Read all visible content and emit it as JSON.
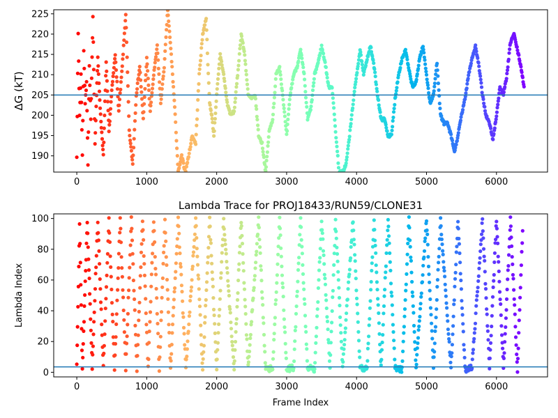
{
  "chart_data": [
    {
      "type": "scatter",
      "title": "",
      "ylabel": "ΔG (kT)",
      "xlabel": "",
      "xlim": [
        -330,
        6730
      ],
      "ylim": [
        186,
        226
      ],
      "xticks": [
        "0",
        "1000",
        "2000",
        "3000",
        "4000",
        "5000",
        "6000"
      ],
      "yticks": [
        "190",
        "195",
        "200",
        "205",
        "210",
        "215",
        "220",
        "225"
      ],
      "hline": 205,
      "grid": false,
      "colormap": "rainbow (red at frame 0 → violet at frame ~6400)",
      "series": [
        {
          "anchors": [
            [
              0,
              190
            ],
            [
              20,
              220
            ],
            [
              40,
              200
            ],
            [
              60,
              210
            ],
            [
              80,
              190
            ],
            [
              100,
              216
            ],
            [
              120,
              203
            ],
            [
              140,
              208
            ],
            [
              160,
              188
            ],
            [
              180,
              212
            ],
            [
              200,
              199
            ],
            [
              230,
              224
            ],
            [
              260,
              193
            ],
            [
              300,
              214
            ],
            [
              340,
              200
            ],
            [
              380,
              190
            ],
            [
              420,
              213
            ],
            [
              460,
              196
            ],
            [
              500,
              206
            ],
            [
              550,
              215
            ],
            [
              600,
              201
            ],
            [
              650,
              212
            ],
            [
              700,
              225
            ],
            [
              750,
              196
            ],
            [
              800,
              188
            ],
            [
              850,
              205
            ],
            [
              900,
              212
            ],
            [
              950,
              199
            ],
            [
              1000,
              214
            ],
            [
              1050,
              201
            ],
            [
              1100,
              210
            ],
            [
              1150,
              217
            ],
            [
              1200,
              203
            ],
            [
              1250,
              212
            ],
            [
              1300,
              226
            ],
            [
              1350,
              215
            ],
            [
              1400,
              202
            ],
            [
              1450,
              186
            ],
            [
              1500,
              190
            ],
            [
              1550,
              186
            ],
            [
              1600,
              190
            ],
            [
              1650,
              195
            ],
            [
              1700,
              193
            ],
            [
              1750,
              210
            ],
            [
              1800,
              220
            ],
            [
              1850,
              224
            ],
            [
              1880,
              210
            ],
            [
              1900,
              203
            ],
            [
              1930,
              200
            ],
            [
              1960,
              195
            ],
            [
              2000,
              205
            ],
            [
              2050,
              215
            ],
            [
              2100,
              210
            ],
            [
              2150,
              203
            ],
            [
              2200,
              200
            ],
            [
              2250,
              201
            ],
            [
              2300,
              210
            ],
            [
              2350,
              220
            ],
            [
              2400,
              215
            ],
            [
              2450,
              205
            ],
            [
              2500,
              204
            ],
            [
              2550,
              205
            ],
            [
              2600,
              195
            ],
            [
              2650,
              193
            ],
            [
              2700,
              186
            ],
            [
              2750,
              196
            ],
            [
              2800,
              199
            ],
            [
              2850,
              210
            ],
            [
              2900,
              212
            ],
            [
              2950,
              204
            ],
            [
              3000,
              195
            ],
            [
              3050,
              205
            ],
            [
              3100,
              210
            ],
            [
              3150,
              212
            ],
            [
              3200,
              216
            ],
            [
              3250,
              210
            ],
            [
              3300,
              199
            ],
            [
              3350,
              202
            ],
            [
              3400,
              210
            ],
            [
              3450,
              213
            ],
            [
              3500,
              217
            ],
            [
              3550,
              213
            ],
            [
              3600,
              207
            ],
            [
              3650,
              207
            ],
            [
              3700,
              196
            ],
            [
              3750,
              186
            ],
            [
              3800,
              186
            ],
            [
              3850,
              188
            ],
            [
              3900,
              195
            ],
            [
              3950,
              203
            ],
            [
              4000,
              210
            ],
            [
              4050,
              216
            ],
            [
              4100,
              210
            ],
            [
              4150,
              214
            ],
            [
              4200,
              217
            ],
            [
              4250,
              212
            ],
            [
              4300,
              205
            ],
            [
              4350,
              199
            ],
            [
              4400,
              199
            ],
            [
              4450,
              195
            ],
            [
              4500,
              195
            ],
            [
              4550,
              204
            ],
            [
              4600,
              210
            ],
            [
              4650,
              214
            ],
            [
              4700,
              216
            ],
            [
              4750,
              211
            ],
            [
              4800,
              207
            ],
            [
              4850,
              208
            ],
            [
              4900,
              214
            ],
            [
              4950,
              217
            ],
            [
              5000,
              210
            ],
            [
              5050,
              203
            ],
            [
              5100,
              205
            ],
            [
              5150,
              213
            ],
            [
              5200,
              200
            ],
            [
              5250,
              198
            ],
            [
              5300,
              198
            ],
            [
              5350,
              195
            ],
            [
              5400,
              191
            ],
            [
              5450,
              195
            ],
            [
              5500,
              200
            ],
            [
              5550,
              204
            ],
            [
              5600,
              210
            ],
            [
              5650,
              214
            ],
            [
              5700,
              217
            ],
            [
              5750,
              212
            ],
            [
              5800,
              205
            ],
            [
              5850,
              200
            ],
            [
              5900,
              198
            ],
            [
              5950,
              194
            ],
            [
              6000,
              200
            ],
            [
              6050,
              207
            ],
            [
              6100,
              205
            ],
            [
              6150,
              210
            ],
            [
              6200,
              218
            ],
            [
              6250,
              220
            ],
            [
              6300,
              216
            ],
            [
              6350,
              212
            ],
            [
              6400,
              206
            ]
          ]
        }
      ]
    },
    {
      "type": "scatter",
      "title": "Lambda Trace for PROJ18433/RUN59/CLONE31",
      "xlabel": "Frame Index",
      "ylabel": "Lambda Index",
      "xlim": [
        -330,
        6730
      ],
      "ylim": [
        -3,
        103
      ],
      "xticks": [
        "0",
        "1000",
        "2000",
        "3000",
        "4000",
        "5000",
        "6000"
      ],
      "yticks": [
        "0",
        "20",
        "40",
        "60",
        "80",
        "100"
      ],
      "hline": 3.5,
      "grid": false,
      "colormap": "rainbow (red at frame 0 → violet at frame ~6400)",
      "series": [
        {
          "anchors": [
            [
              0,
              5
            ],
            [
              40,
              97
            ],
            [
              80,
              2
            ],
            [
              150,
              99
            ],
            [
              220,
              4
            ],
            [
              300,
              99
            ],
            [
              380,
              3
            ],
            [
              460,
              99
            ],
            [
              540,
              2
            ],
            [
              620,
              99
            ],
            [
              700,
              3
            ],
            [
              780,
              99
            ],
            [
              860,
              2
            ],
            [
              940,
              99
            ],
            [
              1020,
              3
            ],
            [
              1100,
              99
            ],
            [
              1180,
              2
            ],
            [
              1260,
              99
            ],
            [
              1340,
              3
            ],
            [
              1450,
              99
            ],
            [
              1560,
              3
            ],
            [
              1700,
              99
            ],
            [
              1800,
              2
            ],
            [
              1900,
              99
            ],
            [
              2000,
              3
            ],
            [
              2100,
              99
            ],
            [
              2250,
              2
            ],
            [
              2350,
              99
            ],
            [
              2450,
              3
            ],
            [
              2600,
              99
            ],
            [
              2700,
              2
            ],
            [
              2800,
              3
            ],
            [
              2900,
              99
            ],
            [
              3000,
              2
            ],
            [
              3100,
              3
            ],
            [
              3200,
              99
            ],
            [
              3300,
              3
            ],
            [
              3400,
              2
            ],
            [
              3500,
              99
            ],
            [
              3620,
              3
            ],
            [
              3700,
              99
            ],
            [
              3800,
              3
            ],
            [
              3950,
              99
            ],
            [
              4050,
              3
            ],
            [
              4150,
              2
            ],
            [
              4250,
              99
            ],
            [
              4350,
              3
            ],
            [
              4450,
              99
            ],
            [
              4550,
              3
            ],
            [
              4650,
              2
            ],
            [
              4750,
              99
            ],
            [
              4850,
              3
            ],
            [
              5000,
              99
            ],
            [
              5100,
              3
            ],
            [
              5200,
              99
            ],
            [
              5350,
              3
            ],
            [
              5450,
              99
            ],
            [
              5550,
              2
            ],
            [
              5650,
              3
            ],
            [
              5800,
              99
            ],
            [
              5900,
              3
            ],
            [
              6000,
              99
            ],
            [
              6100,
              3
            ],
            [
              6200,
              99
            ],
            [
              6300,
              2
            ],
            [
              6380,
              99
            ]
          ]
        }
      ]
    }
  ]
}
